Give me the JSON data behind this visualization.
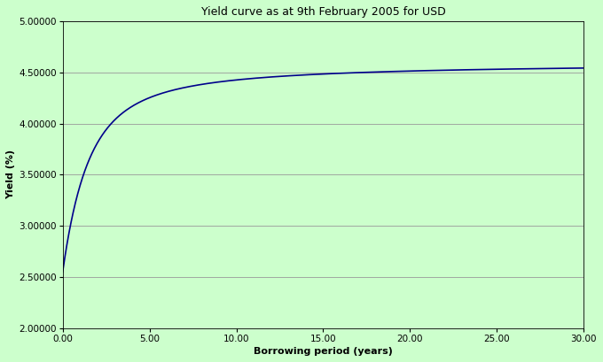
{
  "title": "Yield curve as at 9th February 2005 for USD",
  "xlabel": "Borrowing period (years)",
  "ylabel": "Yield (%)",
  "xlim": [
    0.0,
    30.0
  ],
  "ylim": [
    2.0,
    5.0
  ],
  "xticks": [
    0.0,
    5.0,
    10.0,
    15.0,
    20.0,
    25.0,
    30.0
  ],
  "yticks": [
    2.0,
    2.5,
    3.0,
    3.5,
    4.0,
    4.5,
    5.0
  ],
  "line_color": "#00008B",
  "plot_bg_color": "#ccffcc",
  "fig_bg_color": "#ccffcc",
  "grid_color": "#999999",
  "title_fontsize": 9,
  "axis_label_fontsize": 8,
  "tick_fontsize": 7.5,
  "ns_beta0": 4.6,
  "ns_beta1": -2.05,
  "ns_beta2": 0.0,
  "ns_tau": 0.85
}
